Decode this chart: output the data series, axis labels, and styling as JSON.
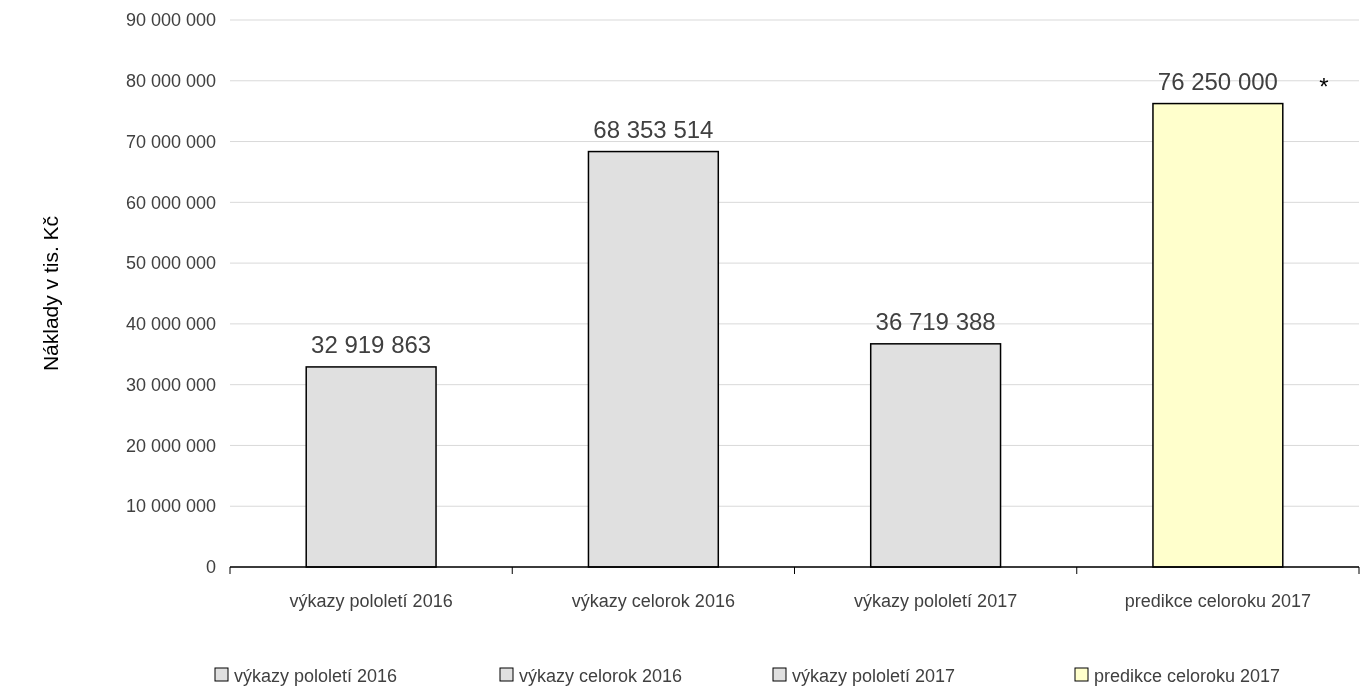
{
  "chart_data": {
    "type": "bar",
    "ylabel": "Náklady v tis. Kč",
    "categories": [
      "výkazy pololetí 2016",
      "výkazy celorok 2016",
      "výkazy pololetí 2017",
      "predikce celoroku 2017"
    ],
    "series": [
      {
        "name": "výkazy pololetí 2016",
        "color": "#e0e0e0",
        "values": [
          32919863,
          null,
          null,
          null
        ],
        "value_labels": [
          "32 919 863",
          null,
          null,
          null
        ]
      },
      {
        "name": "výkazy celorok 2016",
        "color": "#e0e0e0",
        "values": [
          null,
          68353514,
          null,
          null
        ],
        "value_labels": [
          null,
          "68 353 514",
          null,
          null
        ]
      },
      {
        "name": "výkazy pololetí 2017",
        "color": "#e0e0e0",
        "values": [
          null,
          null,
          36719388,
          null
        ],
        "value_labels": [
          null,
          null,
          "36 719 388",
          null
        ]
      },
      {
        "name": "predikce celoroku 2017",
        "color": "#ffffcc",
        "values": [
          null,
          null,
          null,
          76250000
        ],
        "value_labels": [
          null,
          null,
          null,
          "76 250 000"
        ]
      }
    ],
    "ylim": [
      0,
      90000000
    ],
    "yticks": [
      0,
      {
        "value": 10000000,
        "label": "10 000 000"
      },
      {
        "value": 20000000,
        "label": "20 000 000"
      },
      {
        "value": 30000000,
        "label": "30 000 000"
      },
      {
        "value": 40000000,
        "label": "40 000 000"
      },
      {
        "value": 50000000,
        "label": "50 000 000"
      },
      {
        "value": 60000000,
        "label": "60 000 000"
      },
      {
        "value": 70000000,
        "label": "70 000 000"
      },
      {
        "value": 80000000,
        "label": "80 000 000"
      },
      {
        "value": 90000000,
        "label": "90 000 000"
      }
    ],
    "annotations": [
      "*"
    ],
    "grid": "y",
    "legend": "bottom"
  }
}
